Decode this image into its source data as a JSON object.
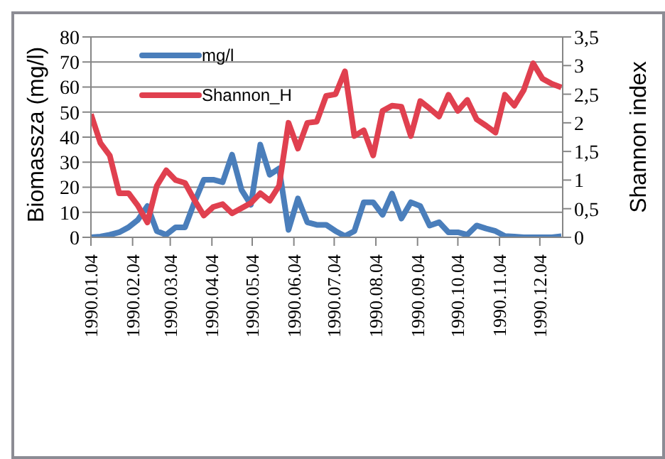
{
  "chart_data": {
    "type": "line",
    "ylabel": "Biomassza (mg/l)",
    "y2label": "Shannon index",
    "x": [
      "1990-01-04",
      "1990-01-11",
      "1990-01-18",
      "1990-01-25",
      "1990-02-01",
      "1990-02-08",
      "1990-02-15",
      "1990-02-22",
      "1990-03-01",
      "1990-03-08",
      "1990-03-15",
      "1990-03-22",
      "1990-03-29",
      "1990-04-05",
      "1990-04-12",
      "1990-04-19",
      "1990-04-26",
      "1990-05-03",
      "1990-05-10",
      "1990-05-17",
      "1990-05-24",
      "1990-05-31",
      "1990-06-07",
      "1990-06-14",
      "1990-06-21",
      "1990-06-28",
      "1990-07-05",
      "1990-07-12",
      "1990-07-19",
      "1990-07-26",
      "1990-08-02",
      "1990-08-09",
      "1990-08-16",
      "1990-08-23",
      "1990-08-30",
      "1990-09-06",
      "1990-09-13",
      "1990-09-20",
      "1990-09-27",
      "1990-10-04",
      "1990-10-11",
      "1990-10-18",
      "1990-10-25",
      "1990-11-01",
      "1990-11-08",
      "1990-11-15",
      "1990-11-22",
      "1990-11-29",
      "1990-12-06",
      "1990-12-13",
      "1990-12-20"
    ],
    "series": [
      {
        "name": "mg/l",
        "color": "#4a7ebb",
        "values": [
          0,
          0.3,
          1,
          2,
          4,
          7,
          12.5,
          2.5,
          1,
          4,
          4,
          14,
          23,
          23,
          22,
          33,
          19,
          13,
          37,
          25,
          27.5,
          3,
          15.5,
          6,
          5,
          5,
          2.5,
          0.5,
          2.5,
          14,
          14,
          9,
          17.5,
          7.5,
          14,
          12.5,
          4.7,
          6,
          2,
          2,
          1,
          4.7,
          3.5,
          2.5,
          0.5,
          0.3,
          0,
          0,
          0,
          0,
          0.4
        ]
      },
      {
        "name": "Shannon_H",
        "color": "#e0404f",
        "axis": "y2",
        "values": [
          2.15,
          1.65,
          1.43,
          0.77,
          0.77,
          0.55,
          0.26,
          0.9,
          1.17,
          1.0,
          0.95,
          0.65,
          0.38,
          0.53,
          0.58,
          0.42,
          0.51,
          0.6,
          0.77,
          0.64,
          0.9,
          2.0,
          1.55,
          2.0,
          2.02,
          2.47,
          2.5,
          2.9,
          1.77,
          1.87,
          1.43,
          2.21,
          2.3,
          2.28,
          1.77,
          2.38,
          2.25,
          2.11,
          2.49,
          2.21,
          2.4,
          2.06,
          1.95,
          1.83,
          2.49,
          2.3,
          2.57,
          3.04,
          2.77,
          2.68,
          2.62
        ]
      }
    ],
    "xlim": [
      "1990-01-04",
      "1990-12-21"
    ],
    "xticks": [
      {
        "value": "1990-01-04",
        "label": "1990.01.04"
      },
      {
        "value": "1990-02-04",
        "label": "1990.02.04"
      },
      {
        "value": "1990-03-04",
        "label": "1990.03.04"
      },
      {
        "value": "1990-04-04",
        "label": "1990.04.04"
      },
      {
        "value": "1990-05-04",
        "label": "1990.05.04"
      },
      {
        "value": "1990-06-04",
        "label": "1990.06.04"
      },
      {
        "value": "1990-07-04",
        "label": "1990.07.04"
      },
      {
        "value": "1990-08-04",
        "label": "1990.08.04"
      },
      {
        "value": "1990-09-04",
        "label": "1990.09.04"
      },
      {
        "value": "1990-10-04",
        "label": "1990.10.04"
      },
      {
        "value": "1990-11-04",
        "label": "1990.11.04"
      },
      {
        "value": "1990-12-04",
        "label": "1990.12.04"
      }
    ],
    "ylim": [
      0,
      80
    ],
    "yticks": [
      0,
      10,
      20,
      30,
      40,
      50,
      60,
      70,
      80
    ],
    "y2lim": [
      0,
      3.5
    ],
    "y2ticks": [
      0,
      {
        "value": 0.5,
        "label": "0,5"
      },
      1,
      {
        "value": 1.5,
        "label": "1,5"
      },
      2,
      {
        "value": 2.5,
        "label": "2,5"
      },
      3,
      {
        "value": 3.5,
        "label": "3,5"
      }
    ],
    "grid": "y",
    "legend": "top left",
    "marker": "none",
    "line_style": "solid"
  }
}
